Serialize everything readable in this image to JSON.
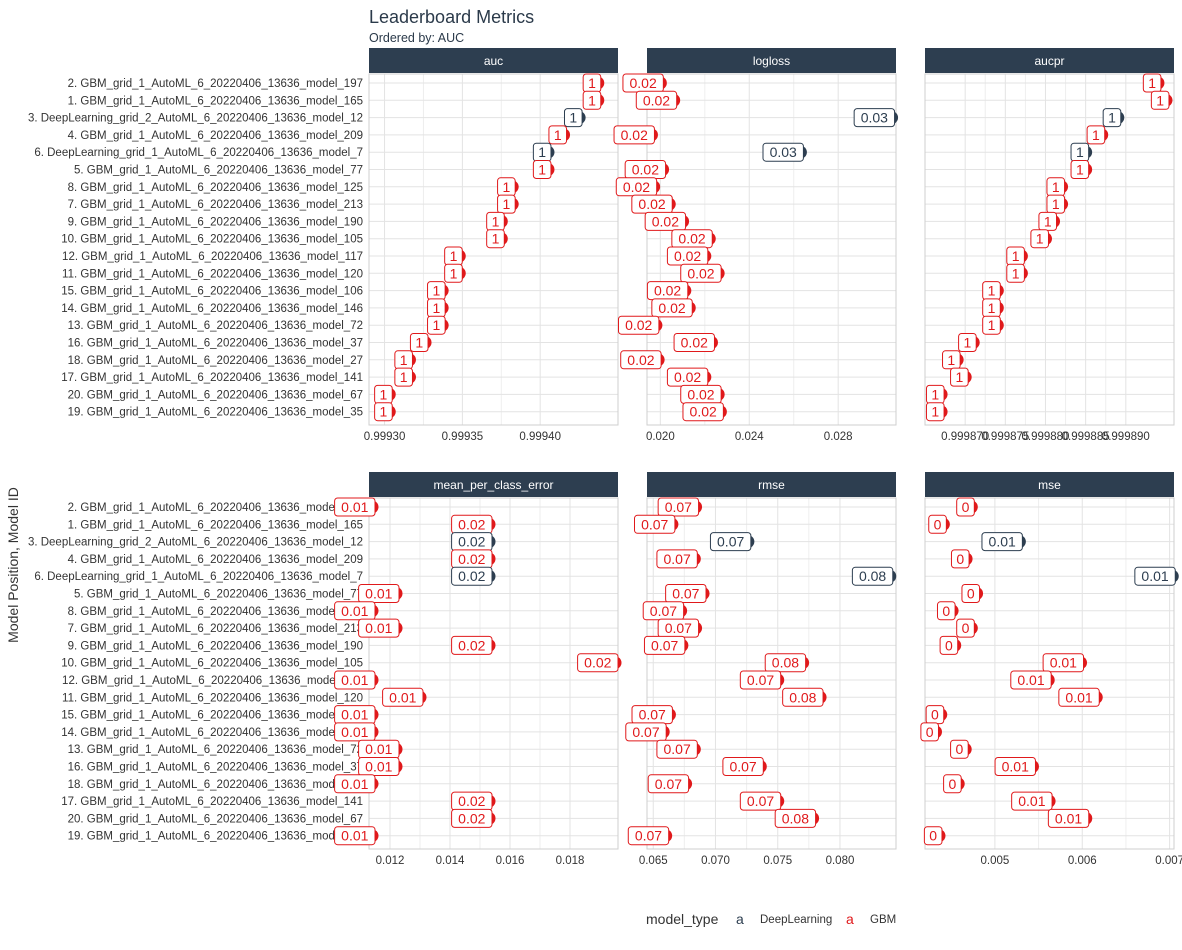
{
  "title": "Leaderboard Metrics",
  "subtitle": "Ordered by: AUC",
  "ylabel": "Model Position, Model ID",
  "legend": {
    "title": "model_type",
    "key_glyph": "a",
    "items": [
      {
        "label": "DeepLearning",
        "color": "#2d3e50"
      },
      {
        "label": "GBM",
        "color": "#e0191b"
      }
    ],
    "placement": "bottom"
  },
  "colors": {
    "DeepLearning": "#2d3e50",
    "GBM": "#e0191b",
    "strip": "#2d3e50"
  },
  "rows": [
    "2. GBM_grid_1_AutoML_6_20220406_13636_model_197",
    "1. GBM_grid_1_AutoML_6_20220406_13636_model_165",
    "3. DeepLearning_grid_2_AutoML_6_20220406_13636_model_12",
    "4. GBM_grid_1_AutoML_6_20220406_13636_model_209",
    "6. DeepLearning_grid_1_AutoML_6_20220406_13636_model_7",
    "5. GBM_grid_1_AutoML_6_20220406_13636_model_77",
    "8. GBM_grid_1_AutoML_6_20220406_13636_model_125",
    "7. GBM_grid_1_AutoML_6_20220406_13636_model_213",
    "9. GBM_grid_1_AutoML_6_20220406_13636_model_190",
    "10. GBM_grid_1_AutoML_6_20220406_13636_model_105",
    "12. GBM_grid_1_AutoML_6_20220406_13636_model_117",
    "11. GBM_grid_1_AutoML_6_20220406_13636_model_120",
    "15. GBM_grid_1_AutoML_6_20220406_13636_model_106",
    "14. GBM_grid_1_AutoML_6_20220406_13636_model_146",
    "13. GBM_grid_1_AutoML_6_20220406_13636_model_72",
    "16. GBM_grid_1_AutoML_6_20220406_13636_model_37",
    "18. GBM_grid_1_AutoML_6_20220406_13636_model_27",
    "17. GBM_grid_1_AutoML_6_20220406_13636_model_141",
    "20. GBM_grid_1_AutoML_6_20220406_13636_model_67",
    "19. GBM_grid_1_AutoML_6_20220406_13636_model_35"
  ],
  "model_types": [
    "GBM",
    "GBM",
    "DeepLearning",
    "GBM",
    "DeepLearning",
    "GBM",
    "GBM",
    "GBM",
    "GBM",
    "GBM",
    "GBM",
    "GBM",
    "GBM",
    "GBM",
    "GBM",
    "GBM",
    "GBM",
    "GBM",
    "GBM",
    "GBM"
  ],
  "chart_data": [
    {
      "type": "scatter",
      "title": "auc",
      "xlim": [
        0.99929,
        0.99945
      ],
      "xticks": [
        0.9993,
        0.99935,
        0.9994
      ],
      "xtick_labels": [
        "0.99930",
        "0.99935",
        "0.99940"
      ],
      "values": [
        0.999437,
        0.999437,
        0.999425,
        0.999415,
        0.999405,
        0.999405,
        0.999382,
        0.999382,
        0.999375,
        0.999375,
        0.999348,
        0.999348,
        0.999337,
        0.999337,
        0.999337,
        0.999326,
        0.999316,
        0.999316,
        0.999303,
        0.999303
      ],
      "labels": [
        "1",
        "1",
        "1",
        "1",
        "1",
        "1",
        "1",
        "1",
        "1",
        "1",
        "1",
        "1",
        "1",
        "1",
        "1",
        "1",
        "1",
        "1",
        "1",
        "1"
      ],
      "grid": true
    },
    {
      "type": "scatter",
      "title": "logloss",
      "xlim": [
        0.0194,
        0.0306
      ],
      "xticks": [
        0.02,
        0.024,
        0.028
      ],
      "xtick_labels": [
        "0.020",
        "0.024",
        "0.028"
      ],
      "values": [
        0.02,
        0.0206,
        0.0304,
        0.0196,
        0.0263,
        0.0201,
        0.0197,
        0.0204,
        0.021,
        0.0222,
        0.022,
        0.0226,
        0.0211,
        0.0213,
        0.0198,
        0.0223,
        0.0199,
        0.022,
        0.0226,
        0.0227
      ],
      "labels": [
        "0.02",
        "0.02",
        "0.03",
        "0.02",
        "0.03",
        "0.02",
        "0.02",
        "0.02",
        "0.02",
        "0.02",
        "0.02",
        "0.02",
        "0.02",
        "0.02",
        "0.02",
        "0.02",
        "0.02",
        "0.02",
        "0.02",
        "0.02"
      ],
      "grid": true
    },
    {
      "type": "scatter",
      "title": "aucpr",
      "xlim": [
        0.999865,
        0.999896
      ],
      "xticks": [
        0.99987,
        0.999875,
        0.99988,
        0.999885,
        0.99989
      ],
      "xtick_labels": [
        "0.999870",
        "0.999875",
        "0.999880",
        "0.999885",
        "0.999890"
      ],
      "values": [
        0.999894,
        0.999895,
        0.999889,
        0.999887,
        0.999885,
        0.999885,
        0.999882,
        0.999882,
        0.999881,
        0.99988,
        0.999877,
        0.999877,
        0.999874,
        0.999874,
        0.999874,
        0.999871,
        0.999869,
        0.99987,
        0.999867,
        0.999867
      ],
      "labels": [
        "1",
        "1",
        "1",
        "1",
        "1",
        "1",
        "1",
        "1",
        "1",
        "1",
        "1",
        "1",
        "1",
        "1",
        "1",
        "1",
        "1",
        "1",
        "1",
        "1"
      ],
      "grid": true
    },
    {
      "type": "scatter",
      "title": "mean_per_class_error",
      "xlim": [
        0.0113,
        0.0196
      ],
      "xticks": [
        0.012,
        0.014,
        0.016,
        0.018
      ],
      "xtick_labels": [
        "0.012",
        "0.014",
        "0.016",
        "0.018"
      ],
      "values": [
        0.0114,
        0.0153,
        0.0153,
        0.0153,
        0.0153,
        0.0122,
        0.0114,
        0.0122,
        0.0153,
        0.0195,
        0.0114,
        0.013,
        0.0114,
        0.0114,
        0.0122,
        0.0122,
        0.0114,
        0.0153,
        0.0153,
        0.0114
      ],
      "labels": [
        "0.01",
        "0.02",
        "0.02",
        "0.02",
        "0.02",
        "0.01",
        "0.01",
        "0.01",
        "0.02",
        "0.02",
        "0.01",
        "0.01",
        "0.01",
        "0.01",
        "0.01",
        "0.01",
        "0.01",
        "0.02",
        "0.02",
        "0.01"
      ],
      "grid": true
    },
    {
      "type": "scatter",
      "title": "rmse",
      "xlim": [
        0.0645,
        0.0845
      ],
      "xticks": [
        0.065,
        0.07,
        0.075,
        0.08
      ],
      "xtick_labels": [
        "0.065",
        "0.070",
        "0.075",
        "0.080"
      ],
      "values": [
        0.0684,
        0.0665,
        0.0726,
        0.0683,
        0.084,
        0.069,
        0.0672,
        0.0684,
        0.0673,
        0.077,
        0.075,
        0.0784,
        0.0663,
        0.0658,
        0.0683,
        0.0736,
        0.0676,
        0.075,
        0.0778,
        0.066
      ],
      "labels": [
        "0.07",
        "0.07",
        "0.07",
        "0.07",
        "0.08",
        "0.07",
        "0.07",
        "0.07",
        "0.07",
        "0.08",
        "0.07",
        "0.08",
        "0.07",
        "0.07",
        "0.07",
        "0.07",
        "0.07",
        "0.07",
        "0.08",
        "0.07"
      ],
      "grid": true
    },
    {
      "type": "scatter",
      "title": "mse",
      "xlim": [
        0.0042,
        0.00705
      ],
      "xticks": [
        0.005,
        0.006,
        0.007
      ],
      "xtick_labels": [
        "0.005",
        "0.006",
        "0.007"
      ],
      "values": [
        0.00473,
        0.00441,
        0.00528,
        0.00467,
        0.00703,
        0.00479,
        0.00451,
        0.00473,
        0.00454,
        0.00598,
        0.00561,
        0.00616,
        0.00438,
        0.00432,
        0.00466,
        0.00543,
        0.00458,
        0.00562,
        0.00604,
        0.00436
      ],
      "labels": [
        "0",
        "0",
        "0.01",
        "0",
        "0.01",
        "0",
        "0",
        "0",
        "0",
        "0.01",
        "0.01",
        "0.01",
        "0",
        "0",
        "0",
        "0.01",
        "0",
        "0.01",
        "0.01",
        "0"
      ],
      "grid": true
    }
  ]
}
